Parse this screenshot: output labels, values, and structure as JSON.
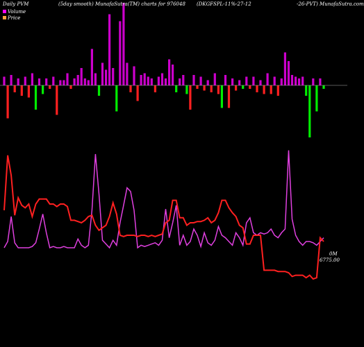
{
  "header": {
    "left": "Daily PVM",
    "mid1": "(5day smooth) MunafaSutra(TM) charts for 976048",
    "mid2": "(DKGFSPL-11%-27-12",
    "right": "-26-PVT) MunafaSutra.com"
  },
  "legend": [
    {
      "label": "Volume",
      "color": "#ff00ff"
    },
    {
      "label": "Price",
      "color": "#ffa040"
    }
  ],
  "price_labels": {
    "top": "0M",
    "bottom": "6775.00"
  },
  "colors": {
    "background": "#000000",
    "axis": "#b0b0b0",
    "volume_up": "#cc00cc",
    "volume_down_red": "#ff2020",
    "volume_down_green": "#00ee00",
    "volume_line": "#e040e0",
    "price_line": "#ff2020"
  },
  "chart_data": {
    "type": "bar+line",
    "series": [
      {
        "name": "Volume",
        "kind": "bars",
        "values": [
          10,
          -38,
          12,
          -8,
          8,
          -12,
          10,
          -14,
          14,
          -28,
          8,
          -10,
          8,
          -4,
          10,
          -34,
          6,
          6,
          14,
          -4,
          8,
          12,
          20,
          8,
          6,
          42,
          14,
          -12,
          26,
          18,
          82,
          20,
          -30,
          74,
          95,
          26,
          -8,
          22,
          -18,
          12,
          14,
          10,
          8,
          -8,
          10,
          14,
          8,
          30,
          24,
          -8,
          8,
          12,
          -10,
          -28,
          12,
          -4,
          10,
          -6,
          6,
          -8,
          14,
          -10,
          -26,
          12,
          -26,
          8,
          -6,
          6,
          -4,
          10,
          -4,
          10,
          -8,
          6,
          -10,
          14,
          -10,
          10,
          -12,
          8,
          38,
          28,
          12,
          10,
          8,
          10,
          -12,
          -60,
          8,
          -30,
          8,
          -4
        ],
        "signs": [
          "p",
          "r",
          "p",
          "r",
          "p",
          "r",
          "p",
          "r",
          "p",
          "g",
          "p",
          "g",
          "p",
          "r",
          "p",
          "r",
          "p",
          "p",
          "p",
          "r",
          "p",
          "p",
          "p",
          "p",
          "p",
          "p",
          "p",
          "g",
          "p",
          "p",
          "p",
          "p",
          "g",
          "p",
          "p",
          "p",
          "r",
          "p",
          "r",
          "p",
          "p",
          "p",
          "p",
          "r",
          "p",
          "p",
          "p",
          "p",
          "p",
          "g",
          "p",
          "p",
          "g",
          "r",
          "p",
          "r",
          "p",
          "r",
          "p",
          "r",
          "p",
          "r",
          "g",
          "p",
          "r",
          "p",
          "r",
          "p",
          "g",
          "p",
          "r",
          "p",
          "r",
          "p",
          "r",
          "p",
          "r",
          "p",
          "r",
          "p",
          "p",
          "p",
          "p",
          "p",
          "p",
          "p",
          "g",
          "g",
          "p",
          "g",
          "p",
          "g"
        ]
      },
      {
        "name": "Volume",
        "kind": "line",
        "values": [
          0.1,
          0.15,
          0.35,
          0.14,
          0.1,
          0.1,
          0.1,
          0.1,
          0.11,
          0.14,
          0.25,
          0.37,
          0.22,
          0.1,
          0.11,
          0.1,
          0.1,
          0.11,
          0.1,
          0.1,
          0.1,
          0.17,
          0.12,
          0.1,
          0.12,
          0.4,
          0.85,
          0.53,
          0.16,
          0.13,
          0.1,
          0.16,
          0.12,
          0.3,
          0.44,
          0.58,
          0.55,
          0.4,
          0.1,
          0.12,
          0.11,
          0.12,
          0.13,
          0.14,
          0.12,
          0.16,
          0.41,
          0.18,
          0.3,
          0.44,
          0.12,
          0.2,
          0.12,
          0.15,
          0.25,
          0.2,
          0.11,
          0.22,
          0.14,
          0.12,
          0.16,
          0.27,
          0.2,
          0.18,
          0.15,
          0.12,
          0.22,
          0.18,
          0.12,
          0.3,
          0.34,
          0.22,
          0.2,
          0.22,
          0.21,
          0.22,
          0.25,
          0.2,
          0.18,
          0.22,
          0.25,
          0.88,
          0.33,
          0.2,
          0.15,
          0.12,
          0.15,
          0.15,
          0.14,
          0.12,
          0.15,
          0.18
        ]
      },
      {
        "name": "Price",
        "kind": "line",
        "values": [
          0.4,
          0.84,
          0.68,
          0.36,
          0.5,
          0.44,
          0.42,
          0.45,
          0.35,
          0.45,
          0.49,
          0.49,
          0.49,
          0.45,
          0.45,
          0.43,
          0.45,
          0.45,
          0.43,
          0.32,
          0.32,
          0.31,
          0.3,
          0.32,
          0.35,
          0.36,
          0.28,
          0.24,
          0.26,
          0.28,
          0.35,
          0.46,
          0.37,
          0.2,
          0.19,
          0.2,
          0.2,
          0.2,
          0.19,
          0.2,
          0.2,
          0.19,
          0.2,
          0.19,
          0.2,
          0.21,
          0.3,
          0.32,
          0.48,
          0.48,
          0.34,
          0.34,
          0.28,
          0.3,
          0.3,
          0.31,
          0.31,
          0.32,
          0.34,
          0.3,
          0.32,
          0.38,
          0.48,
          0.48,
          0.42,
          0.38,
          0.35,
          0.28,
          0.26,
          0.13,
          0.13,
          0.2,
          0.2,
          0.2,
          -0.08,
          -0.08,
          -0.08,
          -0.08,
          -0.09,
          -0.09,
          -0.09,
          -0.1,
          -0.13,
          -0.12,
          -0.12,
          -0.12,
          -0.14,
          -0.12,
          -0.15,
          -0.14,
          0.18,
          0.15
        ]
      }
    ]
  }
}
